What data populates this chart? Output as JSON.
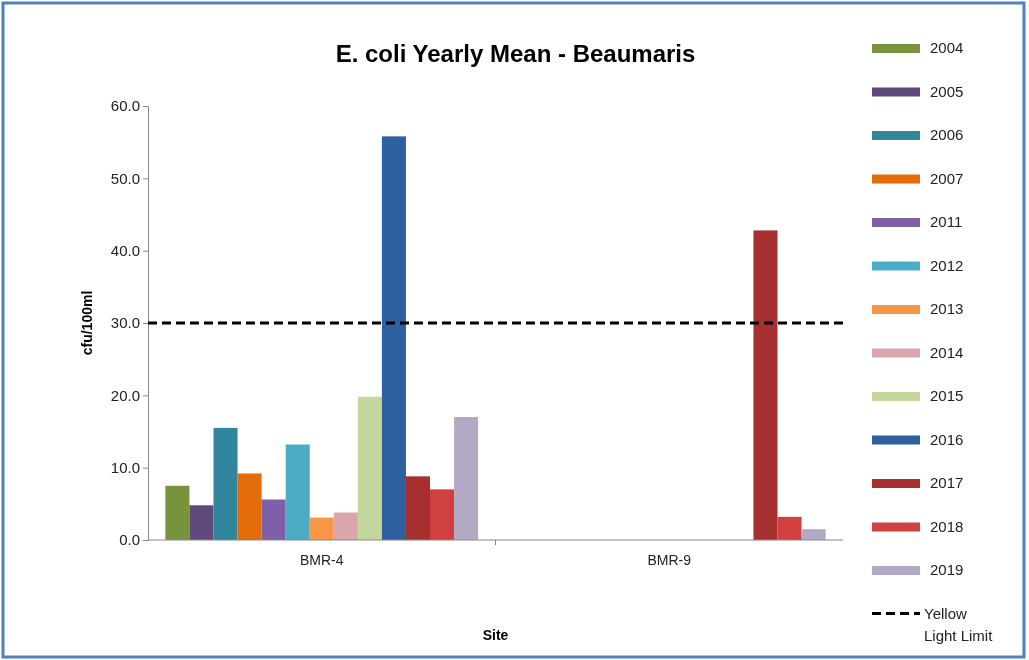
{
  "chart_data": {
    "type": "bar",
    "title": "E. coli Yearly Mean - Beaumaris",
    "xlabel": "Site",
    "ylabel": "cfu/100ml",
    "categories": [
      "BMR-4",
      "BMR-9"
    ],
    "series": [
      {
        "name": "2004",
        "color": "#77933c",
        "values": [
          7.5,
          null
        ]
      },
      {
        "name": "2005",
        "color": "#604a7b",
        "values": [
          4.8,
          null
        ]
      },
      {
        "name": "2006",
        "color": "#31859c",
        "values": [
          15.5,
          null
        ]
      },
      {
        "name": "2007",
        "color": "#e46c0a",
        "values": [
          9.2,
          null
        ]
      },
      {
        "name": "2011",
        "color": "#7f5fa8",
        "values": [
          5.6,
          null
        ]
      },
      {
        "name": "2012",
        "color": "#4bacc6",
        "values": [
          13.2,
          null
        ]
      },
      {
        "name": "2013",
        "color": "#f79646",
        "values": [
          3.1,
          null
        ]
      },
      {
        "name": "2014",
        "color": "#d9a6ac",
        "values": [
          3.8,
          null
        ]
      },
      {
        "name": "2015",
        "color": "#c3d69b",
        "values": [
          19.8,
          null
        ]
      },
      {
        "name": "2016",
        "color": "#2e5f9e",
        "values": [
          55.8,
          null
        ]
      },
      {
        "name": "2017",
        "color": "#a5302f",
        "values": [
          8.8,
          42.8
        ]
      },
      {
        "name": "2018",
        "color": "#d04040",
        "values": [
          7.0,
          3.2
        ]
      },
      {
        "name": "2019",
        "color": "#b3a9c4",
        "values": [
          17.0,
          1.5
        ]
      }
    ],
    "ylim": [
      0,
      60
    ],
    "yticks": [
      {
        "value": 0,
        "label": "0.0"
      },
      {
        "value": 10,
        "label": "10.0"
      },
      {
        "value": 20,
        "label": "20.0"
      },
      {
        "value": 30,
        "label": "30.0"
      },
      {
        "value": 40,
        "label": "40.0"
      },
      {
        "value": 50,
        "label": "50.0"
      },
      {
        "value": 60,
        "label": "60.0"
      }
    ],
    "ref_lines": [
      {
        "axis": "y",
        "value": 30,
        "label": "Yellow Light Limit",
        "color": "#000000",
        "line_style": "dashed"
      }
    ],
    "legend": "right"
  }
}
